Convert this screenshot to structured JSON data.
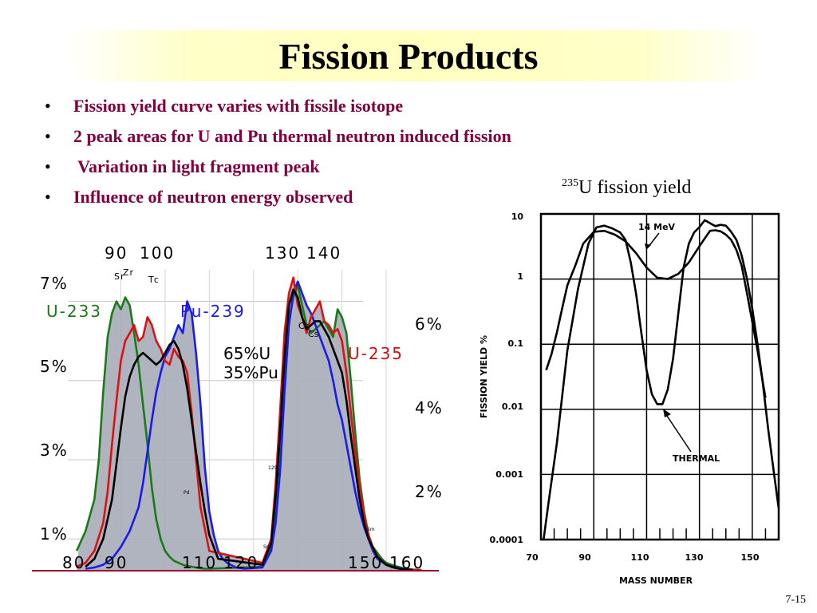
{
  "slide": {
    "title": "Fission Products",
    "bullets": [
      "Fission yield curve varies with fissile isotope",
      "2 peak areas for U and Pu thermal neutron induced fission",
      " Variation in light fragment peak",
      "Influence of neutron energy observed"
    ],
    "caption_sup": "235",
    "caption_text": "U fission yield",
    "page_number": "7-15"
  },
  "chart_data": [
    {
      "type": "line",
      "title": "",
      "x_axis": {
        "top_tick_labels": [
          "90",
          "100",
          "130",
          "140"
        ],
        "bottom_tick_labels": [
          "80",
          "90",
          "110",
          "120",
          "150",
          "160"
        ]
      },
      "y_axis_left": {
        "tick_labels": [
          "7%",
          "5%",
          "3%",
          "1%"
        ]
      },
      "y_axis_right": {
        "tick_labels": [
          "6%",
          "4%",
          "2%"
        ]
      },
      "legend_labels": {
        "u233": "U-233",
        "pu239": "Pu-239",
        "u235": "U-235",
        "mix_line1": "65%U",
        "mix_line2": "35%Pu"
      },
      "element_labels": {
        "sr": "Sr",
        "zr": "Zr",
        "tc": "Tc",
        "cs1": "Cs",
        "cs2": "Cs",
        "i_mass": "129",
        "i": "I",
        "pd": "Pd",
        "sn": "Sn",
        "sm": "Sm"
      },
      "colors": {
        "u233": "#1a7a1a",
        "pu239": "#1a1aee",
        "u235": "#dd1111",
        "mix": "#000000",
        "fill": "#a6acb8",
        "u233_label": "#1a7a1a",
        "pu239_label": "#1a1aee",
        "u235_label": "#cc1111"
      },
      "series": [
        {
          "name": "U-233",
          "x": [
            80,
            82,
            84,
            85,
            86,
            87,
            88,
            89,
            90,
            91,
            92,
            93,
            94,
            95,
            96,
            97,
            98,
            99,
            100,
            101,
            102,
            103,
            104,
            105,
            106,
            107,
            108,
            109,
            110,
            122,
            124,
            125,
            126,
            127,
            128,
            129,
            130,
            131,
            132,
            133,
            134,
            135,
            136,
            137,
            138,
            139,
            140,
            141,
            142,
            143,
            144,
            145,
            146,
            147,
            148,
            149,
            150,
            152,
            154,
            156,
            158
          ],
          "y": [
            0.5,
            1.0,
            1.8,
            2.8,
            4.5,
            5.9,
            6.5,
            6.8,
            6.6,
            6.9,
            6.7,
            6.0,
            5.2,
            4.2,
            3.2,
            2.1,
            1.3,
            0.8,
            0.5,
            0.35,
            0.25,
            0.2,
            0.15,
            0.12,
            0.1,
            0.08,
            0.06,
            0.05,
            0.05,
            0.1,
            0.6,
            1.6,
            3.2,
            5.0,
            6.3,
            6.9,
            7.2,
            6.7,
            6.2,
            6.0,
            6.1,
            6.2,
            6.3,
            6.1,
            5.9,
            6.6,
            6.4,
            6.0,
            4.8,
            3.5,
            2.3,
            1.5,
            0.9,
            0.6,
            0.45,
            0.3,
            0.2,
            0.12,
            0.06,
            0.03,
            0.02
          ]
        },
        {
          "name": "Pu-239",
          "x": [
            82,
            84,
            86,
            88,
            90,
            92,
            94,
            95,
            96,
            97,
            98,
            99,
            100,
            101,
            102,
            103,
            104,
            105,
            106,
            107,
            108,
            109,
            110,
            111,
            112,
            113,
            114,
            116,
            118,
            122,
            124,
            125,
            126,
            127,
            128,
            129,
            130,
            131,
            132,
            133,
            134,
            135,
            136,
            137,
            138,
            139,
            140,
            141,
            142,
            143,
            144,
            145,
            146,
            147,
            148,
            150,
            152,
            154,
            156,
            158
          ],
          "y": [
            0.05,
            0.08,
            0.15,
            0.3,
            0.6,
            1.0,
            1.6,
            2.2,
            3.0,
            3.8,
            4.5,
            5.0,
            5.4,
            5.6,
            5.9,
            6.2,
            6.0,
            6.8,
            6.5,
            5.5,
            4.2,
            2.6,
            1.5,
            0.9,
            0.5,
            0.3,
            0.2,
            0.08,
            0.05,
            0.08,
            0.5,
            1.2,
            2.5,
            4.5,
            6.2,
            7.0,
            7.3,
            7.0,
            6.7,
            6.5,
            6.2,
            5.9,
            5.6,
            5.3,
            4.8,
            4.2,
            3.8,
            3.2,
            2.6,
            2.0,
            1.5,
            1.1,
            0.8,
            0.5,
            0.3,
            0.15,
            0.08,
            0.04,
            0.02,
            0.01
          ]
        },
        {
          "name": "U-235",
          "x": [
            80,
            82,
            84,
            86,
            87,
            88,
            89,
            90,
            91,
            92,
            93,
            94,
            95,
            96,
            97,
            98,
            99,
            100,
            101,
            102,
            103,
            104,
            105,
            106,
            107,
            108,
            110,
            122,
            124,
            125,
            126,
            127,
            128,
            129,
            130,
            131,
            132,
            133,
            134,
            135,
            136,
            137,
            138,
            139,
            140,
            141,
            142,
            143,
            144,
            145,
            146,
            147,
            148,
            150,
            152,
            154,
            156,
            158
          ],
          "y": [
            0.1,
            0.2,
            0.5,
            1.2,
            2.0,
            3.2,
            4.3,
            5.3,
            5.8,
            6.0,
            6.2,
            5.8,
            5.9,
            6.4,
            6.2,
            5.8,
            5.6,
            5.3,
            5.2,
            5.6,
            5.4,
            5.3,
            5.0,
            4.0,
            2.8,
            1.6,
            0.5,
            0.2,
            0.8,
            2.2,
            4.0,
            6.0,
            7.0,
            7.4,
            6.7,
            6.4,
            6.0,
            6.4,
            6.6,
            6.8,
            6.3,
            6.2,
            6.0,
            6.1,
            5.8,
            5.0,
            4.0,
            3.0,
            2.1,
            1.4,
            0.9,
            0.55,
            0.35,
            0.15,
            0.07,
            0.03,
            0.02,
            0.01
          ]
        },
        {
          "name": "",
          "x": [
            82,
            84,
            86,
            88,
            89,
            90,
            91,
            92,
            93,
            94,
            95,
            96,
            97,
            98,
            99,
            100,
            101,
            102,
            103,
            104,
            105,
            106,
            107,
            108,
            109,
            110,
            112,
            122,
            124,
            125,
            126,
            127,
            128,
            129,
            130,
            131,
            132,
            133,
            134,
            135,
            136,
            137,
            138,
            139,
            140,
            141,
            142,
            143,
            144,
            145,
            146,
            148,
            150,
            152,
            154,
            156
          ],
          "y": [
            0.1,
            0.3,
            0.8,
            1.8,
            2.7,
            3.6,
            4.4,
            4.9,
            5.2,
            5.4,
            5.5,
            5.4,
            5.3,
            5.2,
            5.3,
            5.5,
            5.7,
            5.8,
            5.6,
            5.2,
            4.6,
            3.8,
            3.0,
            2.2,
            1.5,
            0.9,
            0.3,
            0.15,
            0.7,
            1.9,
            3.5,
            5.4,
            6.7,
            7.1,
            6.9,
            6.4,
            6.1,
            6.2,
            6.3,
            6.3,
            6.1,
            5.9,
            5.6,
            5.3,
            5.0,
            4.3,
            3.4,
            2.6,
            1.8,
            1.2,
            0.8,
            0.35,
            0.15,
            0.07,
            0.03,
            0.02
          ]
        }
      ],
      "xlim": [
        78,
        161
      ],
      "ylim": [
        0,
        8
      ]
    },
    {
      "type": "line",
      "title": "",
      "xlabel": "MASS NUMBER",
      "ylabel": "FISSION YIELD %",
      "y_scale": "log",
      "xlim": [
        70,
        160
      ],
      "ylim": [
        0.0001,
        10
      ],
      "x_tick_labels": [
        "70",
        "90",
        "110",
        "130",
        "150"
      ],
      "y_tick_labels": [
        "10",
        "1",
        "0.1",
        "0.01",
        "0.001",
        "0.0001"
      ],
      "annotations": [
        "14 MeV",
        "THERMAL"
      ],
      "grid": true,
      "series": [
        {
          "name": "14 MeV",
          "x": [
            72,
            74,
            76,
            78,
            80,
            83,
            86,
            90,
            94,
            98,
            102,
            106,
            110,
            114,
            118,
            122,
            126,
            130,
            132,
            134,
            136,
            138,
            140,
            142,
            144,
            146,
            148,
            150,
            152,
            155
          ],
          "y": [
            0.04,
            0.07,
            0.15,
            0.35,
            0.8,
            1.6,
            3.5,
            5.3,
            5.5,
            4.8,
            3.8,
            2.5,
            1.5,
            1.05,
            1.0,
            1.2,
            1.8,
            3.2,
            4.2,
            5.5,
            5.6,
            5.4,
            4.8,
            4.0,
            2.8,
            1.6,
            0.6,
            0.22,
            0.08,
            0.015
          ]
        },
        {
          "name": "THERMAL",
          "x": [
            71,
            73,
            76,
            80,
            84,
            88,
            91,
            94,
            97,
            100,
            102,
            104,
            106,
            108,
            110,
            112,
            114,
            116,
            118,
            120,
            122,
            124,
            126,
            128,
            130,
            132,
            134,
            136,
            138,
            140,
            142,
            144,
            146,
            148,
            150,
            152,
            154,
            156,
            158,
            160
          ],
          "y": [
            0.0001,
            0.0004,
            0.003,
            0.08,
            0.7,
            3.5,
            6.2,
            6.6,
            6.0,
            5.2,
            4.0,
            1.8,
            0.6,
            0.15,
            0.04,
            0.017,
            0.012,
            0.012,
            0.02,
            0.06,
            0.3,
            1.5,
            3.5,
            5.2,
            6.3,
            8.0,
            7.2,
            6.5,
            6.8,
            6.6,
            5.3,
            4.0,
            2.3,
            1.0,
            0.35,
            0.1,
            0.025,
            0.005,
            0.0012,
            0.0003
          ]
        }
      ]
    }
  ]
}
